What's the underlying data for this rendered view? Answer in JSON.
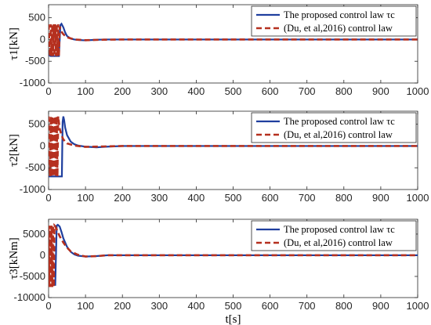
{
  "chart_data": [
    {
      "type": "line",
      "ylabel": "τ1[kN]",
      "xlabel": "",
      "xlim": [
        0,
        1000
      ],
      "ylim": [
        -1000,
        800
      ],
      "xticks": [
        "0",
        "100",
        "200",
        "300",
        "400",
        "500",
        "600",
        "700",
        "800",
        "900",
        "1000"
      ],
      "yticks": [
        "500",
        "0",
        "-500",
        "-1000"
      ],
      "ytick_values": [
        500,
        0,
        -500,
        -1000
      ],
      "grid": false,
      "legend_position": "top-right",
      "series": [
        {
          "name": "The proposed control law τc",
          "color": "#1f3f9e",
          "style": "solid",
          "x": [
            0,
            5,
            10,
            20,
            28,
            32,
            35,
            40,
            45,
            50,
            60,
            70,
            80,
            100,
            120,
            150,
            200,
            1000
          ],
          "y": [
            -350,
            -380,
            -380,
            -380,
            -380,
            330,
            360,
            280,
            160,
            80,
            20,
            0,
            -10,
            -20,
            -10,
            0,
            0,
            0
          ]
        },
        {
          "name": "(Du, et al,2016) control law",
          "color": "#b5301f",
          "style": "dashed",
          "x": [
            0,
            4,
            6,
            8,
            10,
            12,
            14,
            16,
            18,
            20,
            22,
            24,
            26,
            28,
            30,
            35,
            40,
            50,
            70,
            100,
            150,
            200,
            1000
          ],
          "y": [
            350,
            -380,
            350,
            -380,
            350,
            -380,
            350,
            -380,
            350,
            -380,
            350,
            -380,
            350,
            -380,
            300,
            180,
            120,
            50,
            0,
            -15,
            -5,
            0,
            0
          ]
        }
      ]
    },
    {
      "type": "line",
      "ylabel": "τ2[kN]",
      "xlabel": "",
      "xlim": [
        0,
        1000
      ],
      "ylim": [
        -1000,
        800
      ],
      "xticks": [
        "0",
        "100",
        "200",
        "300",
        "400",
        "500",
        "600",
        "700",
        "800",
        "900",
        "1000"
      ],
      "yticks": [
        "500",
        "0",
        "-500",
        "-1000"
      ],
      "ytick_values": [
        500,
        0,
        -500,
        -1000
      ],
      "grid": false,
      "legend_position": "top-right",
      "series": [
        {
          "name": "The proposed control law τc",
          "color": "#1f3f9e",
          "style": "solid",
          "x": [
            0,
            10,
            20,
            30,
            36,
            38,
            40,
            42,
            45,
            50,
            60,
            70,
            80,
            100,
            130,
            160,
            200,
            1000
          ],
          "y": [
            -700,
            -700,
            -700,
            -700,
            -700,
            550,
            680,
            600,
            420,
            250,
            100,
            40,
            10,
            -15,
            -30,
            -15,
            0,
            0
          ]
        },
        {
          "name": "(Du, et al,2016) control law",
          "color": "#b5301f",
          "style": "dashed",
          "x": [
            0,
            4,
            6,
            8,
            10,
            12,
            14,
            16,
            18,
            20,
            22,
            24,
            26,
            30,
            35,
            40,
            50,
            70,
            100,
            150,
            200,
            1000
          ],
          "y": [
            680,
            -700,
            680,
            -700,
            680,
            -700,
            680,
            -700,
            680,
            -700,
            680,
            -700,
            680,
            400,
            250,
            150,
            60,
            10,
            -20,
            -10,
            0,
            0
          ]
        }
      ]
    },
    {
      "type": "line",
      "ylabel": "τ3[kNm]",
      "xlabel": "t[s]",
      "xlim": [
        0,
        1000
      ],
      "ylim": [
        -10000,
        8500
      ],
      "xticks": [
        "0",
        "100",
        "200",
        "300",
        "400",
        "500",
        "600",
        "700",
        "800",
        "900",
        "1000"
      ],
      "yticks": [
        "5000",
        "0",
        "-5000",
        "-10000"
      ],
      "ytick_values": [
        5000,
        0,
        -5000,
        -10000
      ],
      "grid": false,
      "legend_position": "top-right",
      "series": [
        {
          "name": "The proposed control law τc",
          "color": "#1f3f9e",
          "style": "solid",
          "x": [
            0,
            5,
            10,
            18,
            22,
            25,
            30,
            35,
            40,
            50,
            60,
            70,
            80,
            100,
            130,
            160,
            200,
            1000
          ],
          "y": [
            -7000,
            -7000,
            -7000,
            -7000,
            7000,
            7200,
            6800,
            5500,
            4000,
            2000,
            800,
            200,
            -100,
            -300,
            -200,
            0,
            0,
            0
          ]
        },
        {
          "name": "(Du, et al,2016) control law",
          "color": "#b5301f",
          "style": "dashed",
          "x": [
            0,
            2,
            4,
            6,
            8,
            10,
            12,
            14,
            16,
            18,
            20,
            25,
            30,
            40,
            50,
            60,
            80,
            100,
            130,
            160,
            200,
            1000
          ],
          "y": [
            7000,
            -7500,
            7000,
            -7500,
            7000,
            -7500,
            7000,
            -7500,
            7000,
            6800,
            6500,
            5500,
            4500,
            3000,
            1800,
            900,
            100,
            -300,
            -200,
            0,
            0,
            0
          ]
        }
      ]
    }
  ]
}
